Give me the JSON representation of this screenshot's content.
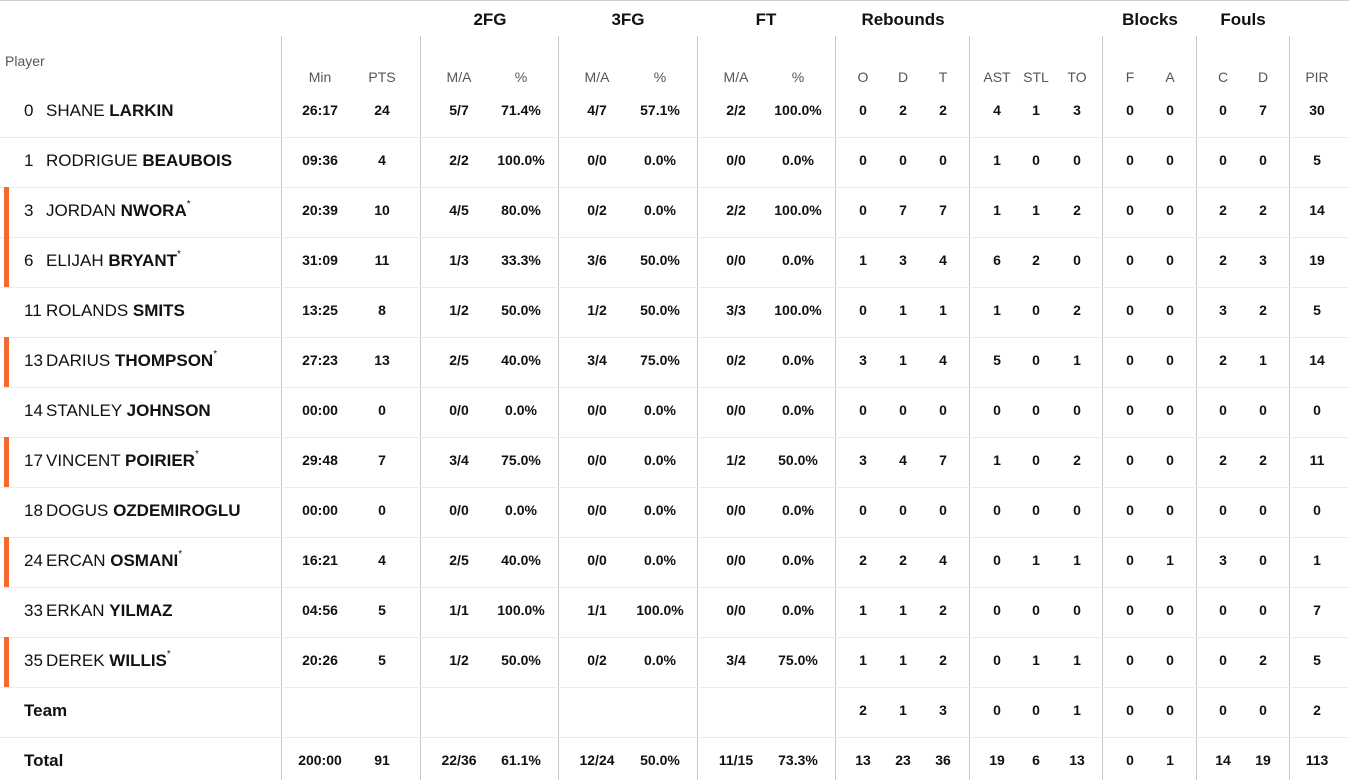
{
  "header": {
    "player_label": "Player",
    "groups": [
      "2FG",
      "3FG",
      "FT",
      "Rebounds",
      "Blocks",
      "Fouls"
    ],
    "columns": [
      "Min",
      "PTS",
      "M/A",
      "%",
      "M/A",
      "%",
      "M/A",
      "%",
      "O",
      "D",
      "T",
      "AST",
      "STL",
      "TO",
      "F",
      "A",
      "C",
      "D",
      "PIR"
    ]
  },
  "accent_color": "#f26a2e",
  "players": [
    {
      "number": "0",
      "first": "SHANE",
      "last": "LARKIN",
      "starter": false,
      "stats": [
        "26:17",
        "24",
        "5/7",
        "71.4%",
        "4/7",
        "57.1%",
        "2/2",
        "100.0%",
        "0",
        "2",
        "2",
        "4",
        "1",
        "3",
        "0",
        "0",
        "0",
        "7",
        "30"
      ]
    },
    {
      "number": "1",
      "first": "RODRIGUE",
      "last": "BEAUBOIS",
      "starter": false,
      "stats": [
        "09:36",
        "4",
        "2/2",
        "100.0%",
        "0/0",
        "0.0%",
        "0/0",
        "0.0%",
        "0",
        "0",
        "0",
        "1",
        "0",
        "0",
        "0",
        "0",
        "0",
        "0",
        "5"
      ]
    },
    {
      "number": "3",
      "first": "JORDAN",
      "last": "NWORA",
      "starter": true,
      "stats": [
        "20:39",
        "10",
        "4/5",
        "80.0%",
        "0/2",
        "0.0%",
        "2/2",
        "100.0%",
        "0",
        "7",
        "7",
        "1",
        "1",
        "2",
        "0",
        "0",
        "2",
        "2",
        "14"
      ]
    },
    {
      "number": "6",
      "first": "ELIJAH",
      "last": "BRYANT",
      "starter": true,
      "stats": [
        "31:09",
        "11",
        "1/3",
        "33.3%",
        "3/6",
        "50.0%",
        "0/0",
        "0.0%",
        "1",
        "3",
        "4",
        "6",
        "2",
        "0",
        "0",
        "0",
        "2",
        "3",
        "19"
      ]
    },
    {
      "number": "11",
      "first": "ROLANDS",
      "last": "SMITS",
      "starter": false,
      "stats": [
        "13:25",
        "8",
        "1/2",
        "50.0%",
        "1/2",
        "50.0%",
        "3/3",
        "100.0%",
        "0",
        "1",
        "1",
        "1",
        "0",
        "2",
        "0",
        "0",
        "3",
        "2",
        "5"
      ]
    },
    {
      "number": "13",
      "first": "DARIUS",
      "last": "THOMPSON",
      "starter": true,
      "stats": [
        "27:23",
        "13",
        "2/5",
        "40.0%",
        "3/4",
        "75.0%",
        "0/2",
        "0.0%",
        "3",
        "1",
        "4",
        "5",
        "0",
        "1",
        "0",
        "0",
        "2",
        "1",
        "14"
      ]
    },
    {
      "number": "14",
      "first": "STANLEY",
      "last": "JOHNSON",
      "starter": false,
      "stats": [
        "00:00",
        "0",
        "0/0",
        "0.0%",
        "0/0",
        "0.0%",
        "0/0",
        "0.0%",
        "0",
        "0",
        "0",
        "0",
        "0",
        "0",
        "0",
        "0",
        "0",
        "0",
        "0"
      ]
    },
    {
      "number": "17",
      "first": "VINCENT",
      "last": "POIRIER",
      "starter": true,
      "stats": [
        "29:48",
        "7",
        "3/4",
        "75.0%",
        "0/0",
        "0.0%",
        "1/2",
        "50.0%",
        "3",
        "4",
        "7",
        "1",
        "0",
        "2",
        "0",
        "0",
        "2",
        "2",
        "11"
      ]
    },
    {
      "number": "18",
      "first": "DOGUS",
      "last": "OZDEMIROGLU",
      "starter": false,
      "stats": [
        "00:00",
        "0",
        "0/0",
        "0.0%",
        "0/0",
        "0.0%",
        "0/0",
        "0.0%",
        "0",
        "0",
        "0",
        "0",
        "0",
        "0",
        "0",
        "0",
        "0",
        "0",
        "0"
      ]
    },
    {
      "number": "24",
      "first": "ERCAN",
      "last": "OSMANI",
      "starter": true,
      "stats": [
        "16:21",
        "4",
        "2/5",
        "40.0%",
        "0/0",
        "0.0%",
        "0/0",
        "0.0%",
        "2",
        "2",
        "4",
        "0",
        "1",
        "1",
        "0",
        "1",
        "3",
        "0",
        "1"
      ]
    },
    {
      "number": "33",
      "first": "ERKAN",
      "last": "YILMAZ",
      "starter": false,
      "stats": [
        "04:56",
        "5",
        "1/1",
        "100.0%",
        "1/1",
        "100.0%",
        "0/0",
        "0.0%",
        "1",
        "1",
        "2",
        "0",
        "0",
        "0",
        "0",
        "0",
        "0",
        "0",
        "7"
      ]
    },
    {
      "number": "35",
      "first": "DEREK",
      "last": "WILLIS",
      "starter": true,
      "stats": [
        "20:26",
        "5",
        "1/2",
        "50.0%",
        "0/2",
        "0.0%",
        "3/4",
        "75.0%",
        "1",
        "1",
        "2",
        "0",
        "1",
        "1",
        "0",
        "0",
        "0",
        "2",
        "5"
      ]
    }
  ],
  "team": {
    "label": "Team",
    "stats": [
      "",
      "",
      "",
      "",
      "",
      "",
      "",
      "",
      "2",
      "1",
      "3",
      "0",
      "0",
      "1",
      "0",
      "0",
      "0",
      "0",
      "2"
    ]
  },
  "total": {
    "label": "Total",
    "stats": [
      "200:00",
      "91",
      "22/36",
      "61.1%",
      "12/24",
      "50.0%",
      "11/15",
      "73.3%",
      "13",
      "23",
      "36",
      "19",
      "6",
      "13",
      "0",
      "1",
      "14",
      "19",
      "113"
    ]
  }
}
